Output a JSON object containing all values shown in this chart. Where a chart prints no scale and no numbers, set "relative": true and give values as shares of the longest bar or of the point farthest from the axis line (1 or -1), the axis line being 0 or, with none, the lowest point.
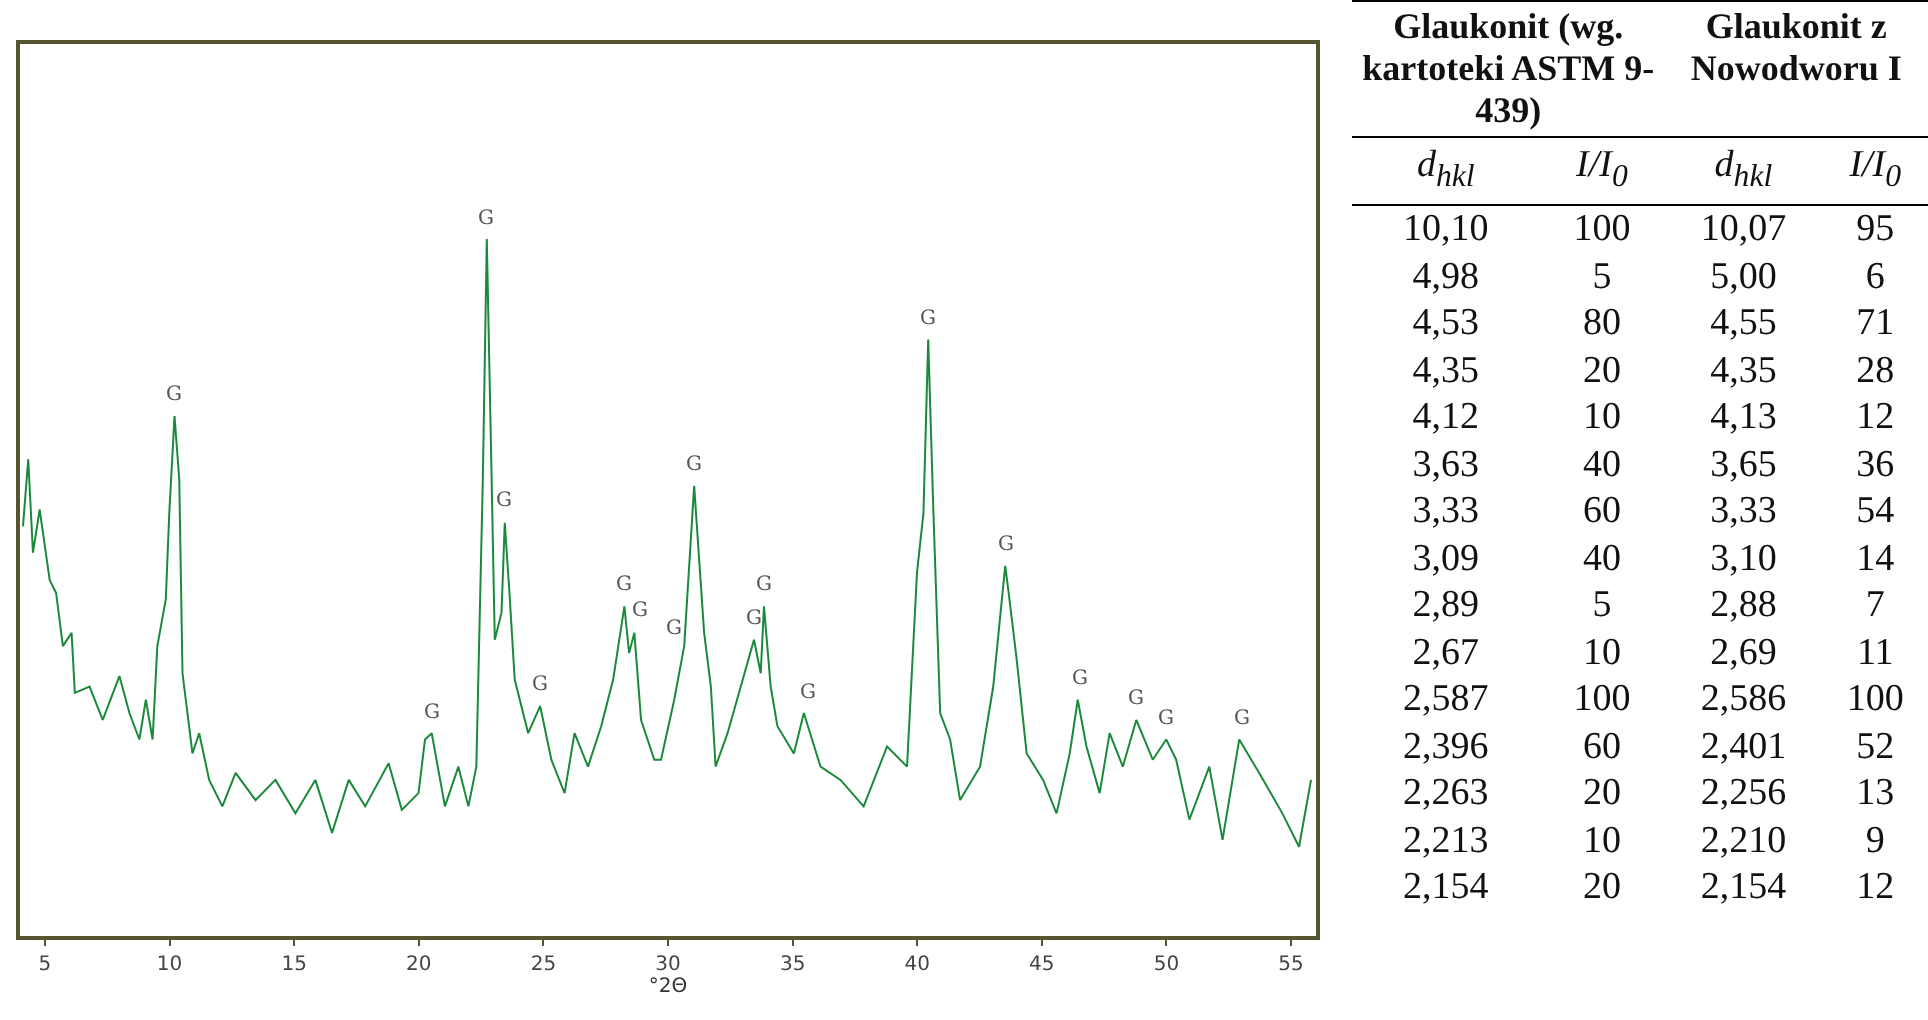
{
  "chart_data": [
    {
      "type": "line",
      "xlabel": "°2Θ",
      "relative": true,
      "grid": false,
      "legend": false,
      "xlim": [
        4,
        56
      ],
      "xticks": [
        5,
        10,
        15,
        20,
        25,
        30,
        35,
        40,
        45,
        50,
        55
      ],
      "x": [
        4.12,
        4.33,
        4.52,
        4.79,
        5.19,
        5.45,
        5.72,
        6.07,
        6.2,
        6.79,
        7.32,
        7.99,
        8.39,
        8.79,
        9.05,
        9.32,
        9.51,
        9.85,
        9.99,
        10.2,
        10.39,
        10.52,
        10.92,
        11.19,
        11.59,
        12.12,
        12.65,
        13.45,
        14.25,
        15.05,
        15.85,
        16.52,
        17.19,
        17.85,
        18.79,
        19.32,
        19.99,
        20.25,
        20.52,
        21.05,
        21.59,
        21.99,
        22.31,
        22.57,
        22.73,
        22.87,
        23.05,
        23.32,
        23.45,
        23.64,
        23.85,
        24.39,
        24.87,
        25.32,
        25.85,
        26.25,
        26.79,
        27.32,
        27.8,
        28.25,
        28.44,
        28.65,
        28.92,
        29.45,
        29.72,
        30.25,
        30.65,
        31.05,
        31.45,
        31.72,
        31.91,
        32.39,
        32.92,
        33.45,
        33.72,
        33.85,
        34.12,
        34.39,
        35.05,
        35.45,
        36.12,
        36.92,
        37.85,
        38.79,
        39.59,
        39.99,
        40.25,
        40.44,
        40.65,
        40.92,
        41.32,
        41.72,
        42.52,
        43.05,
        43.53,
        43.67,
        43.99,
        44.39,
        45.05,
        45.59,
        46.12,
        46.44,
        46.79,
        47.32,
        47.72,
        48.25,
        48.79,
        49.45,
        49.99,
        50.39,
        50.92,
        51.72,
        52.25,
        52.92,
        53.72,
        54.65,
        55.32,
        55.8
      ],
      "series": [
        {
          "color": "#1a8a3a",
          "values": [
            0.588,
            0.684,
            0.55,
            0.612,
            0.511,
            0.492,
            0.416,
            0.435,
            0.349,
            0.358,
            0.31,
            0.373,
            0.32,
            0.282,
            0.339,
            0.282,
            0.416,
            0.483,
            0.607,
            0.746,
            0.655,
            0.377,
            0.262,
            0.291,
            0.224,
            0.186,
            0.234,
            0.195,
            0.224,
            0.176,
            0.224,
            0.148,
            0.224,
            0.186,
            0.248,
            0.181,
            0.205,
            0.282,
            0.291,
            0.186,
            0.243,
            0.186,
            0.243,
            0.655,
            1.0,
            0.751,
            0.425,
            0.464,
            0.593,
            0.492,
            0.368,
            0.291,
            0.33,
            0.253,
            0.205,
            0.291,
            0.243,
            0.301,
            0.368,
            0.473,
            0.406,
            0.435,
            0.31,
            0.253,
            0.253,
            0.339,
            0.416,
            0.646,
            0.435,
            0.358,
            0.243,
            0.291,
            0.358,
            0.425,
            0.377,
            0.473,
            0.358,
            0.301,
            0.262,
            0.32,
            0.243,
            0.224,
            0.186,
            0.272,
            0.243,
            0.521,
            0.607,
            0.856,
            0.607,
            0.32,
            0.282,
            0.195,
            0.243,
            0.358,
            0.531,
            0.492,
            0.397,
            0.262,
            0.224,
            0.176,
            0.262,
            0.339,
            0.272,
            0.205,
            0.291,
            0.243,
            0.31,
            0.253,
            0.282,
            0.253,
            0.167,
            0.243,
            0.138,
            0.282,
            0.234,
            0.176,
            0.128,
            0.224
          ]
        }
      ],
      "annotations": [
        {
          "text": "G",
          "x": 10.2,
          "y": 0.746
        },
        {
          "text": "G",
          "x": 20.5,
          "y": 0.291
        },
        {
          "text": "G",
          "x": 22.73,
          "y": 1.0
        },
        {
          "text": "G",
          "x": 23.45,
          "y": 0.593
        },
        {
          "text": "G",
          "x": 24.9,
          "y": 0.33
        },
        {
          "text": "G",
          "x": 28.25,
          "y": 0.473
        },
        {
          "text": "G",
          "x": 28.85,
          "y": 0.435
        },
        {
          "text": "G",
          "x": 30.25,
          "y": 0.41
        },
        {
          "text": "G",
          "x": 31.05,
          "y": 0.646
        },
        {
          "text": "G",
          "x": 33.45,
          "y": 0.425
        },
        {
          "text": "G",
          "x": 33.85,
          "y": 0.473
        },
        {
          "text": "G",
          "x": 35.6,
          "y": 0.32
        },
        {
          "text": "G",
          "x": 40.44,
          "y": 0.856
        },
        {
          "text": "G",
          "x": 43.55,
          "y": 0.531
        },
        {
          "text": "G",
          "x": 46.5,
          "y": 0.339
        },
        {
          "text": "G",
          "x": 48.79,
          "y": 0.31
        },
        {
          "text": "G",
          "x": 49.99,
          "y": 0.282
        },
        {
          "text": "G",
          "x": 53.0,
          "y": 0.282
        }
      ]
    },
    {
      "type": "other",
      "annotations": [
        "Glaukonit (wg. kartoteki ASTM 9-439)",
        "Glaukonit z Nowodworu I"
      ],
      "categories": [
        "d$_{hkl}$",
        "I/I$_{0}$",
        "d$_{hkl}$",
        "I/I$_{0}$"
      ],
      "cell_labels": [
        [
          "10,10",
          "100",
          "10,07",
          "95"
        ],
        [
          "4,98",
          "5",
          "5,00",
          "6"
        ],
        [
          "4,53",
          "80",
          "4,55",
          "71"
        ],
        [
          "4,35",
          "20",
          "4,35",
          "28"
        ],
        [
          "4,12",
          "10",
          "4,13",
          "12"
        ],
        [
          "3,63",
          "40",
          "3,65",
          "36"
        ],
        [
          "3,33",
          "60",
          "3,33",
          "54"
        ],
        [
          "3,09",
          "40",
          "3,10",
          "14"
        ],
        [
          "2,89",
          "5",
          "2,88",
          "7"
        ],
        [
          "2,67",
          "10",
          "2,69",
          "11"
        ],
        [
          "2,587",
          "100",
          "2,586",
          "100"
        ],
        [
          "2,396",
          "60",
          "2,401",
          "52"
        ],
        [
          "2,263",
          "20",
          "2,256",
          "13"
        ],
        [
          "2,213",
          "10",
          "2,210",
          "9"
        ],
        [
          "2,154",
          "20",
          "2,154",
          "12"
        ]
      ]
    }
  ]
}
